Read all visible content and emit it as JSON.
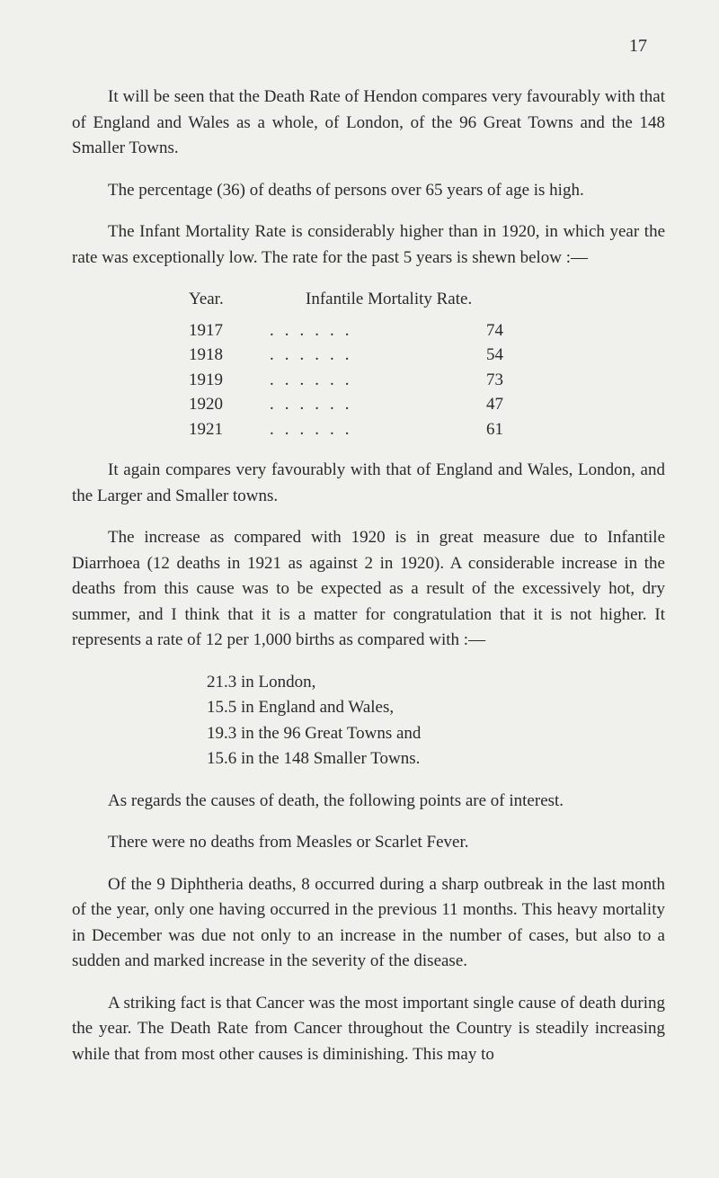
{
  "page_number": "17",
  "paragraphs": {
    "p1": "It will be seen that the Death Rate of Hendon compares very favourably with that of England and Wales as a whole, of London, of the 96 Great Towns and the 148 Smaller Towns.",
    "p2": "The percentage (36) of deaths of persons over 65 years of age is high.",
    "p3": "The Infant Mortality Rate is considerably higher than in 1920, in which year the rate was exceptionally low. The rate for the past 5 years is shewn below :—",
    "p4": "It again compares very favourably with that of England and Wales, London, and the Larger and Smaller towns.",
    "p5": "The increase as compared with 1920 is in great measure due to Infantile Diarrhoea (12 deaths in 1921 as against 2 in 1920). A considerable increase in the deaths from this cause was to be expected as a result of the excessively hot, dry summer, and I think that it is a matter for congratulation that it is not higher. It represents a rate of 12 per 1,000 births as compared with :—",
    "p6": "As regards the causes of death, the following points are of interest.",
    "p7": "There were no deaths from Measles or Scarlet Fever.",
    "p8": "Of the 9 Diphtheria deaths, 8 occurred during a sharp outbreak in the last month of the year, only one having occurred in the previous 11 months. This heavy mortality in December was due not only to an increase in the number of cases, but also to a sudden and marked increase in the severity of the disease.",
    "p9": "A striking fact is that Cancer was the most important single cause of death during the year. The Death Rate from Cancer throughout the Country is steadily increasing while that from most other causes is diminishing. This may to"
  },
  "mortality_table": {
    "header_year": "Year.",
    "header_rate": "Infantile Mortality Rate.",
    "rows": [
      {
        "year": "1917",
        "value": "74"
      },
      {
        "year": "1918",
        "value": "54"
      },
      {
        "year": "1919",
        "value": "73"
      },
      {
        "year": "1920",
        "value": "47"
      },
      {
        "year": "1921",
        "value": "61"
      }
    ],
    "dots": "......"
  },
  "rates_list": {
    "r1": "21.3 in London,",
    "r2": "15.5 in England and Wales,",
    "r3": "19.3 in the 96 Great Towns and",
    "r4": "15.6 in the 148 Smaller Towns."
  }
}
